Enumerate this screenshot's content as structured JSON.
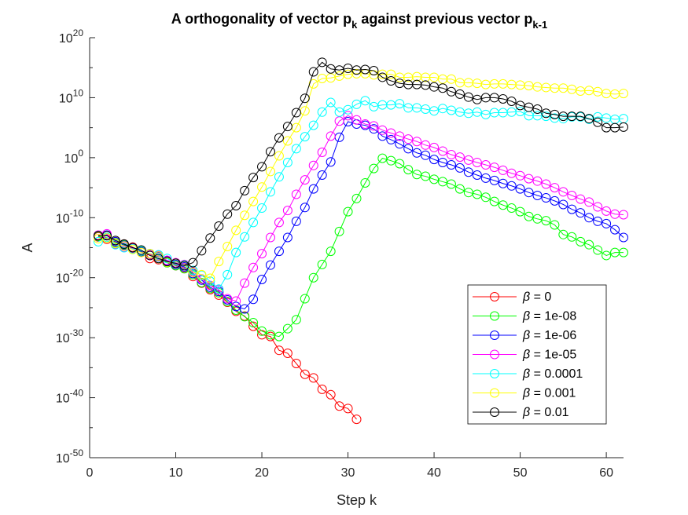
{
  "chart_data": {
    "type": "line",
    "title": {
      "main": "A orthogonality of vector p",
      "sub1": "k",
      "mid": " against previous vector p",
      "sub2": "k-1"
    },
    "xlabel": "Step k",
    "ylabel": "A",
    "xlim": [
      0,
      62
    ],
    "ylim_log10": [
      -50,
      20
    ],
    "y_scale": "log",
    "x_ticks": [
      0,
      10,
      20,
      30,
      40,
      50,
      60
    ],
    "y_ticks_log10": [
      -50,
      -40,
      -30,
      -20,
      -10,
      0,
      10,
      20
    ],
    "y_tick_base": "10",
    "grid": false,
    "legend_position": "bottom-right",
    "legend_prefix": "β",
    "series": [
      {
        "name": "β = 0",
        "beta": "0",
        "color": "#ff0000",
        "x": [
          1,
          2,
          3,
          4,
          5,
          6,
          7,
          8,
          9,
          10,
          11,
          12,
          13,
          14,
          15,
          16,
          17,
          18,
          19,
          20,
          21,
          22,
          23,
          24,
          25,
          26,
          27,
          28,
          29,
          30,
          31
        ],
        "y_log10": [
          -13.2,
          -13.6,
          -14.0,
          -14.4,
          -14.9,
          -15.6,
          -16.8,
          -17.0,
          -17.5,
          -18.0,
          -18.4,
          -19.8,
          -20.9,
          -22.0,
          -22.9,
          -24.1,
          -25.6,
          -26.4,
          -28.1,
          -29.5,
          -29.8,
          -32.1,
          -32.6,
          -34.3,
          -36.1,
          -36.7,
          -38.6,
          -39.5,
          -41.4,
          -41.8,
          -43.6
        ]
      },
      {
        "name": "β = 1e-08",
        "beta": "1e-08",
        "color": "#00ff00",
        "x": [
          1,
          2,
          3,
          4,
          5,
          6,
          7,
          8,
          9,
          10,
          11,
          12,
          13,
          14,
          15,
          16,
          17,
          18,
          19,
          20,
          21,
          22,
          23,
          24,
          25,
          26,
          27,
          28,
          29,
          30,
          31,
          32,
          33,
          34,
          35,
          36,
          37,
          38,
          39,
          40,
          41,
          42,
          43,
          44,
          45,
          46,
          47,
          48,
          49,
          50,
          51,
          52,
          53,
          54,
          55,
          56,
          57,
          58,
          59,
          60,
          61,
          62
        ],
        "y_log10": [
          -13.1,
          -13.3,
          -14.2,
          -14.5,
          -15.0,
          -15.6,
          -16.2,
          -16.8,
          -17.5,
          -18.0,
          -18.5,
          -19.5,
          -20.8,
          -21.8,
          -22.5,
          -24.0,
          -25.4,
          -26.5,
          -27.5,
          -28.9,
          -29.5,
          -29.8,
          -28.5,
          -27.0,
          -23.5,
          -20.0,
          -17.8,
          -15.6,
          -12.3,
          -9.0,
          -6.8,
          -4.2,
          -1.8,
          -0.1,
          -0.5,
          -1.0,
          -2.0,
          -2.8,
          -3.1,
          -3.6,
          -4.0,
          -4.4,
          -5.2,
          -5.8,
          -6.1,
          -6.6,
          -7.3,
          -7.9,
          -8.4,
          -9.0,
          -9.8,
          -10.2,
          -10.5,
          -11.2,
          -12.8,
          -13.2,
          -14.0,
          -14.5,
          -15.4,
          -16.3,
          -15.8,
          -15.8
        ]
      },
      {
        "name": "β = 1e-06",
        "beta": "1e-06",
        "color": "#0000ff",
        "x": [
          1,
          2,
          3,
          4,
          5,
          6,
          7,
          8,
          9,
          10,
          11,
          12,
          13,
          14,
          15,
          16,
          17,
          18,
          19,
          20,
          21,
          22,
          23,
          24,
          25,
          26,
          27,
          28,
          29,
          30,
          31,
          32,
          33,
          34,
          35,
          36,
          37,
          38,
          39,
          40,
          41,
          42,
          43,
          44,
          45,
          46,
          47,
          48,
          49,
          50,
          51,
          52,
          53,
          54,
          55,
          56,
          57,
          58,
          59,
          60,
          61,
          62
        ],
        "y_log10": [
          -13.0,
          -12.9,
          -14.0,
          -14.6,
          -15.0,
          -15.7,
          -16.0,
          -16.5,
          -17.2,
          -17.8,
          -18.2,
          -19.3,
          -20.4,
          -21.6,
          -22.3,
          -23.7,
          -24.8,
          -25.2,
          -23.6,
          -20.3,
          -17.9,
          -15.6,
          -13.3,
          -10.6,
          -8.3,
          -5.2,
          -2.9,
          -0.7,
          3.4,
          6.0,
          5.6,
          5.4,
          4.8,
          3.6,
          3.0,
          2.3,
          1.5,
          0.8,
          0.4,
          -0.3,
          -0.8,
          -1.2,
          -1.7,
          -2.4,
          -2.9,
          -3.4,
          -3.8,
          -4.3,
          -4.7,
          -5.2,
          -5.8,
          -6.3,
          -6.7,
          -7.2,
          -7.8,
          -8.6,
          -9.2,
          -10.0,
          -10.6,
          -11.0,
          -12.0,
          -13.3
        ]
      },
      {
        "name": "β = 1e-05",
        "beta": "1e-05",
        "color": "#ff00ff",
        "x": [
          1,
          2,
          3,
          4,
          5,
          6,
          7,
          8,
          9,
          10,
          11,
          12,
          13,
          14,
          15,
          16,
          17,
          18,
          19,
          20,
          21,
          22,
          23,
          24,
          25,
          26,
          27,
          28,
          29,
          30,
          31,
          32,
          33,
          34,
          35,
          36,
          37,
          38,
          39,
          40,
          41,
          42,
          43,
          44,
          45,
          46,
          47,
          48,
          49,
          50,
          51,
          52,
          53,
          54,
          55,
          56,
          57,
          58,
          59,
          60,
          61,
          62
        ],
        "y_log10": [
          -12.9,
          -12.7,
          -14.4,
          -14.9,
          -15.1,
          -15.5,
          -16.2,
          -16.3,
          -17.1,
          -17.5,
          -17.8,
          -19.0,
          -20.2,
          -21.3,
          -22.0,
          -23.5,
          -23.9,
          -20.9,
          -18.3,
          -16.0,
          -13.3,
          -10.8,
          -8.8,
          -6.1,
          -3.7,
          -1.3,
          0.9,
          3.6,
          6.1,
          7.0,
          6.3,
          5.6,
          5.3,
          4.6,
          4.1,
          3.6,
          3.1,
          2.7,
          2.1,
          1.7,
          1.1,
          0.5,
          0.1,
          -0.4,
          -0.8,
          -1.2,
          -1.6,
          -2.1,
          -2.6,
          -3.0,
          -3.5,
          -3.9,
          -4.4,
          -5.0,
          -5.7,
          -6.3,
          -6.9,
          -7.4,
          -8.2,
          -8.9,
          -9.4,
          -9.5
        ]
      },
      {
        "name": "β = 0.0001",
        "beta": "0.0001",
        "color": "#00ffff",
        "x": [
          1,
          2,
          3,
          4,
          5,
          6,
          7,
          8,
          9,
          10,
          11,
          12,
          13,
          14,
          15,
          16,
          17,
          18,
          19,
          20,
          21,
          22,
          23,
          24,
          25,
          26,
          27,
          28,
          29,
          30,
          31,
          32,
          33,
          34,
          35,
          36,
          37,
          38,
          39,
          40,
          41,
          42,
          43,
          44,
          45,
          46,
          47,
          48,
          49,
          50,
          51,
          52,
          53,
          54,
          55,
          56,
          57,
          58,
          59,
          60,
          61,
          62
        ],
        "y_log10": [
          -14.0,
          -13.3,
          -14.5,
          -15.0,
          -15.2,
          -15.5,
          -16.0,
          -16.2,
          -16.8,
          -17.6,
          -17.9,
          -18.8,
          -19.6,
          -20.6,
          -21.9,
          -19.5,
          -15.8,
          -13.2,
          -10.8,
          -8.4,
          -5.7,
          -3.2,
          -0.8,
          1.5,
          3.5,
          5.4,
          7.6,
          9.2,
          7.6,
          8.0,
          8.9,
          9.5,
          8.5,
          8.8,
          8.8,
          9.0,
          8.3,
          8.3,
          8.1,
          7.8,
          8.2,
          7.9,
          7.6,
          7.4,
          7.6,
          7.2,
          7.5,
          7.5,
          7.6,
          7.7,
          7.0,
          7.0,
          6.9,
          6.6,
          6.5,
          6.8,
          6.8,
          6.4,
          6.8,
          6.6,
          6.4,
          6.5
        ]
      },
      {
        "name": "β = 0.001",
        "beta": "0.001",
        "color": "#ffff00",
        "x": [
          1,
          2,
          3,
          4,
          5,
          6,
          7,
          8,
          9,
          10,
          11,
          12,
          13,
          14,
          15,
          16,
          17,
          18,
          19,
          20,
          21,
          22,
          23,
          24,
          25,
          26,
          27,
          28,
          29,
          30,
          31,
          32,
          33,
          34,
          35,
          36,
          37,
          38,
          39,
          40,
          41,
          42,
          43,
          44,
          45,
          46,
          47,
          48,
          49,
          50,
          51,
          52,
          53,
          54,
          55,
          56,
          57,
          58,
          59,
          60,
          61,
          62
        ],
        "y_log10": [
          -13.5,
          -13.4,
          -14.3,
          -14.7,
          -15.3,
          -15.8,
          -16.0,
          -16.4,
          -17.4,
          -17.6,
          -18.0,
          -19.1,
          -19.5,
          -20.1,
          -17.3,
          -14.8,
          -12.1,
          -9.6,
          -7.3,
          -4.9,
          -2.3,
          0.3,
          2.8,
          5.0,
          7.8,
          12.3,
          13.2,
          13.3,
          13.6,
          13.9,
          14.0,
          14.0,
          13.8,
          13.9,
          13.9,
          13.4,
          13.4,
          13.5,
          13.4,
          13.4,
          13.1,
          13.1,
          12.5,
          12.5,
          12.4,
          12.2,
          12.3,
          12.3,
          12.2,
          12.1,
          12.0,
          11.8,
          11.7,
          11.6,
          11.6,
          11.4,
          11.1,
          11.2,
          11.0,
          10.7,
          10.6,
          10.7
        ]
      },
      {
        "name": "β = 0.01",
        "beta": "0.01",
        "color": "#000000",
        "x": [
          1,
          2,
          3,
          4,
          5,
          6,
          7,
          8,
          9,
          10,
          11,
          12,
          13,
          14,
          15,
          16,
          17,
          18,
          19,
          20,
          21,
          22,
          23,
          24,
          25,
          26,
          27,
          28,
          29,
          30,
          31,
          32,
          33,
          34,
          35,
          36,
          37,
          38,
          39,
          40,
          41,
          42,
          43,
          44,
          45,
          46,
          47,
          48,
          49,
          50,
          51,
          52,
          53,
          54,
          55,
          56,
          57,
          58,
          59,
          60,
          61,
          62
        ],
        "y_log10": [
          -13.0,
          -13.0,
          -13.8,
          -14.4,
          -15.0,
          -15.4,
          -16.3,
          -16.8,
          -17.3,
          -17.6,
          -18.0,
          -17.5,
          -15.5,
          -13.4,
          -11.4,
          -9.4,
          -8.0,
          -5.5,
          -3.3,
          -1.5,
          1.0,
          3.3,
          5.2,
          7.5,
          9.9,
          14.3,
          15.9,
          14.8,
          14.6,
          14.9,
          14.6,
          14.7,
          14.5,
          13.4,
          12.8,
          12.4,
          12.2,
          12.2,
          12.1,
          11.8,
          11.6,
          11.0,
          10.6,
          10.1,
          9.7,
          10.0,
          10.0,
          9.8,
          9.4,
          8.7,
          8.4,
          8.1,
          7.4,
          7.2,
          6.9,
          6.9,
          6.9,
          6.5,
          5.9,
          5.0,
          5.0,
          5.1
        ]
      }
    ]
  }
}
